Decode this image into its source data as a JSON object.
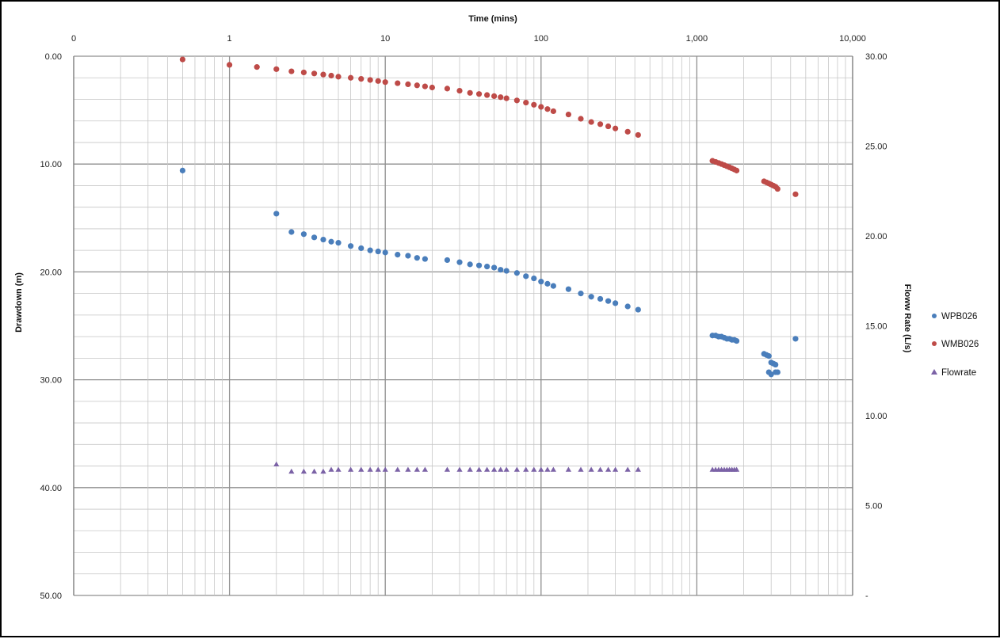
{
  "chart_data": {
    "type": "scatter",
    "title": "",
    "xlabel": "Time (mins)",
    "ylabel": "Drawdown (m)",
    "y2label": "Floww Rate (L/s)",
    "x_scale": "log",
    "xlim": [
      0.1,
      10000
    ],
    "ylim": [
      50,
      0
    ],
    "y2lim": [
      0,
      30
    ],
    "x_tick_labels": [
      "0",
      "1",
      "10",
      "100",
      "1,000",
      "10,000"
    ],
    "y_tick_labels": [
      "0.00",
      "10.00",
      "20.00",
      "30.00",
      "40.00",
      "50.00"
    ],
    "y2_tick_labels": [
      "30.00",
      "25.00",
      "20.00",
      "15.00",
      "10.00",
      "5.00",
      "-"
    ],
    "grid": true,
    "legend_position": "right",
    "series": [
      {
        "name": "WPB026",
        "axis": "left",
        "marker": "circle",
        "color": "#4A7EBB",
        "points": [
          [
            0.5,
            10.6
          ],
          [
            2.0,
            14.6
          ],
          [
            2.5,
            16.3
          ],
          [
            3.0,
            16.5
          ],
          [
            3.5,
            16.8
          ],
          [
            4.0,
            17.0
          ],
          [
            4.5,
            17.2
          ],
          [
            5.0,
            17.3
          ],
          [
            6.0,
            17.6
          ],
          [
            7.0,
            17.8
          ],
          [
            8.0,
            18.0
          ],
          [
            9.0,
            18.1
          ],
          [
            10.0,
            18.2
          ],
          [
            12.0,
            18.4
          ],
          [
            14.0,
            18.5
          ],
          [
            16.0,
            18.7
          ],
          [
            18.0,
            18.8
          ],
          [
            25.0,
            18.9
          ],
          [
            30.0,
            19.1
          ],
          [
            35.0,
            19.3
          ],
          [
            40.0,
            19.4
          ],
          [
            45.0,
            19.5
          ],
          [
            50.0,
            19.6
          ],
          [
            55.0,
            19.8
          ],
          [
            60.0,
            19.9
          ],
          [
            70.0,
            20.1
          ],
          [
            80.0,
            20.4
          ],
          [
            90.0,
            20.6
          ],
          [
            100.0,
            20.9
          ],
          [
            110.0,
            21.1
          ],
          [
            120.0,
            21.3
          ],
          [
            150.0,
            21.6
          ],
          [
            180.0,
            22.0
          ],
          [
            210.0,
            22.3
          ],
          [
            240.0,
            22.5
          ],
          [
            270.0,
            22.7
          ],
          [
            300.0,
            22.9
          ],
          [
            360.0,
            23.2
          ],
          [
            420.0,
            23.5
          ],
          [
            1260,
            25.9
          ],
          [
            1320,
            25.9
          ],
          [
            1380,
            26.0
          ],
          [
            1440,
            26.0
          ],
          [
            1500,
            26.1
          ],
          [
            1560,
            26.2
          ],
          [
            1620,
            26.2
          ],
          [
            1680,
            26.3
          ],
          [
            1740,
            26.3
          ],
          [
            1800,
            26.4
          ],
          [
            2700,
            27.6
          ],
          [
            2800,
            27.7
          ],
          [
            2900,
            27.8
          ],
          [
            3000,
            28.4
          ],
          [
            3100,
            28.5
          ],
          [
            3200,
            28.6
          ],
          [
            2900,
            29.3
          ],
          [
            3000,
            29.5
          ],
          [
            3200,
            29.3
          ],
          [
            3300,
            29.3
          ],
          [
            4300,
            26.2
          ]
        ]
      },
      {
        "name": "WMB026",
        "axis": "left",
        "marker": "circle",
        "color": "#BE4B48",
        "points": [
          [
            0.5,
            0.3
          ],
          [
            1.0,
            0.8
          ],
          [
            1.5,
            1.0
          ],
          [
            2.0,
            1.2
          ],
          [
            2.5,
            1.4
          ],
          [
            3.0,
            1.5
          ],
          [
            3.5,
            1.6
          ],
          [
            4.0,
            1.7
          ],
          [
            4.5,
            1.8
          ],
          [
            5.0,
            1.9
          ],
          [
            6.0,
            2.0
          ],
          [
            7.0,
            2.1
          ],
          [
            8.0,
            2.2
          ],
          [
            9.0,
            2.3
          ],
          [
            10.0,
            2.4
          ],
          [
            12.0,
            2.5
          ],
          [
            14.0,
            2.6
          ],
          [
            16.0,
            2.7
          ],
          [
            18.0,
            2.8
          ],
          [
            20.0,
            2.9
          ],
          [
            25.0,
            3.0
          ],
          [
            30.0,
            3.2
          ],
          [
            35.0,
            3.4
          ],
          [
            40.0,
            3.5
          ],
          [
            45.0,
            3.6
          ],
          [
            50.0,
            3.7
          ],
          [
            55.0,
            3.8
          ],
          [
            60.0,
            3.9
          ],
          [
            70.0,
            4.1
          ],
          [
            80.0,
            4.3
          ],
          [
            90.0,
            4.5
          ],
          [
            100.0,
            4.7
          ],
          [
            110.0,
            4.9
          ],
          [
            120.0,
            5.1
          ],
          [
            150.0,
            5.4
          ],
          [
            180.0,
            5.8
          ],
          [
            210.0,
            6.1
          ],
          [
            240.0,
            6.3
          ],
          [
            270.0,
            6.5
          ],
          [
            300.0,
            6.7
          ],
          [
            360.0,
            7.0
          ],
          [
            420.0,
            7.3
          ],
          [
            1260,
            9.7
          ],
          [
            1320,
            9.8
          ],
          [
            1380,
            9.9
          ],
          [
            1440,
            10.0
          ],
          [
            1500,
            10.1
          ],
          [
            1560,
            10.2
          ],
          [
            1620,
            10.3
          ],
          [
            1680,
            10.4
          ],
          [
            1740,
            10.5
          ],
          [
            1800,
            10.6
          ],
          [
            2700,
            11.6
          ],
          [
            2800,
            11.7
          ],
          [
            2900,
            11.8
          ],
          [
            3000,
            11.9
          ],
          [
            3100,
            12.0
          ],
          [
            3200,
            12.1
          ],
          [
            3300,
            12.3
          ],
          [
            4300,
            12.8
          ]
        ]
      },
      {
        "name": "Flowrate",
        "axis": "right",
        "marker": "triangle",
        "color": "#7B62A6",
        "points": [
          [
            2.0,
            7.3
          ],
          [
            2.5,
            6.9
          ],
          [
            3.0,
            6.9
          ],
          [
            3.5,
            6.9
          ],
          [
            4.0,
            6.9
          ],
          [
            4.5,
            7.0
          ],
          [
            5.0,
            7.0
          ],
          [
            6.0,
            7.0
          ],
          [
            7.0,
            7.0
          ],
          [
            8.0,
            7.0
          ],
          [
            9.0,
            7.0
          ],
          [
            10.0,
            7.0
          ],
          [
            12.0,
            7.0
          ],
          [
            14.0,
            7.0
          ],
          [
            16.0,
            7.0
          ],
          [
            18.0,
            7.0
          ],
          [
            25.0,
            7.0
          ],
          [
            30.0,
            7.0
          ],
          [
            35.0,
            7.0
          ],
          [
            40.0,
            7.0
          ],
          [
            45.0,
            7.0
          ],
          [
            50.0,
            7.0
          ],
          [
            55.0,
            7.0
          ],
          [
            60.0,
            7.0
          ],
          [
            70.0,
            7.0
          ],
          [
            80.0,
            7.0
          ],
          [
            90.0,
            7.0
          ],
          [
            100.0,
            7.0
          ],
          [
            110.0,
            7.0
          ],
          [
            120.0,
            7.0
          ],
          [
            150.0,
            7.0
          ],
          [
            180.0,
            7.0
          ],
          [
            210.0,
            7.0
          ],
          [
            240.0,
            7.0
          ],
          [
            270.0,
            7.0
          ],
          [
            300.0,
            7.0
          ],
          [
            360.0,
            7.0
          ],
          [
            420.0,
            7.0
          ],
          [
            1260,
            7.0
          ],
          [
            1320,
            7.0
          ],
          [
            1380,
            7.0
          ],
          [
            1440,
            7.0
          ],
          [
            1500,
            7.0
          ],
          [
            1560,
            7.0
          ],
          [
            1620,
            7.0
          ],
          [
            1680,
            7.0
          ],
          [
            1740,
            7.0
          ],
          [
            1800,
            7.0
          ]
        ]
      }
    ]
  }
}
